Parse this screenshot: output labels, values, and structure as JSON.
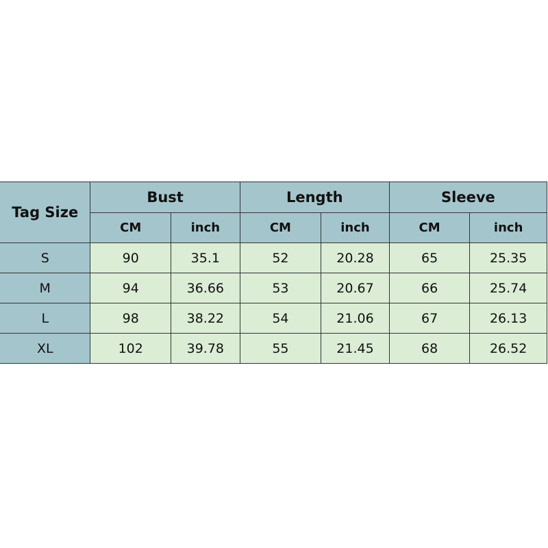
{
  "header": {
    "tag_size": "Tag Size",
    "groups": [
      "Bust",
      "Length",
      "Sleeve"
    ],
    "units": [
      "CM",
      "inch",
      "CM",
      "inch",
      "CM",
      "inch"
    ]
  },
  "colors": {
    "header_bg": "#a4c5cc",
    "body_bg": "#dbedd5"
  },
  "rows": [
    {
      "size": "S",
      "values": [
        "90",
        "35.1",
        "52",
        "20.28",
        "65",
        "25.35"
      ]
    },
    {
      "size": "M",
      "values": [
        "94",
        "36.66",
        "53",
        "20.67",
        "66",
        "25.74"
      ]
    },
    {
      "size": "L",
      "values": [
        "98",
        "38.22",
        "54",
        "21.06",
        "67",
        "26.13"
      ]
    },
    {
      "size": "XL",
      "values": [
        "102",
        "39.78",
        "55",
        "21.45",
        "68",
        "26.52"
      ]
    }
  ]
}
